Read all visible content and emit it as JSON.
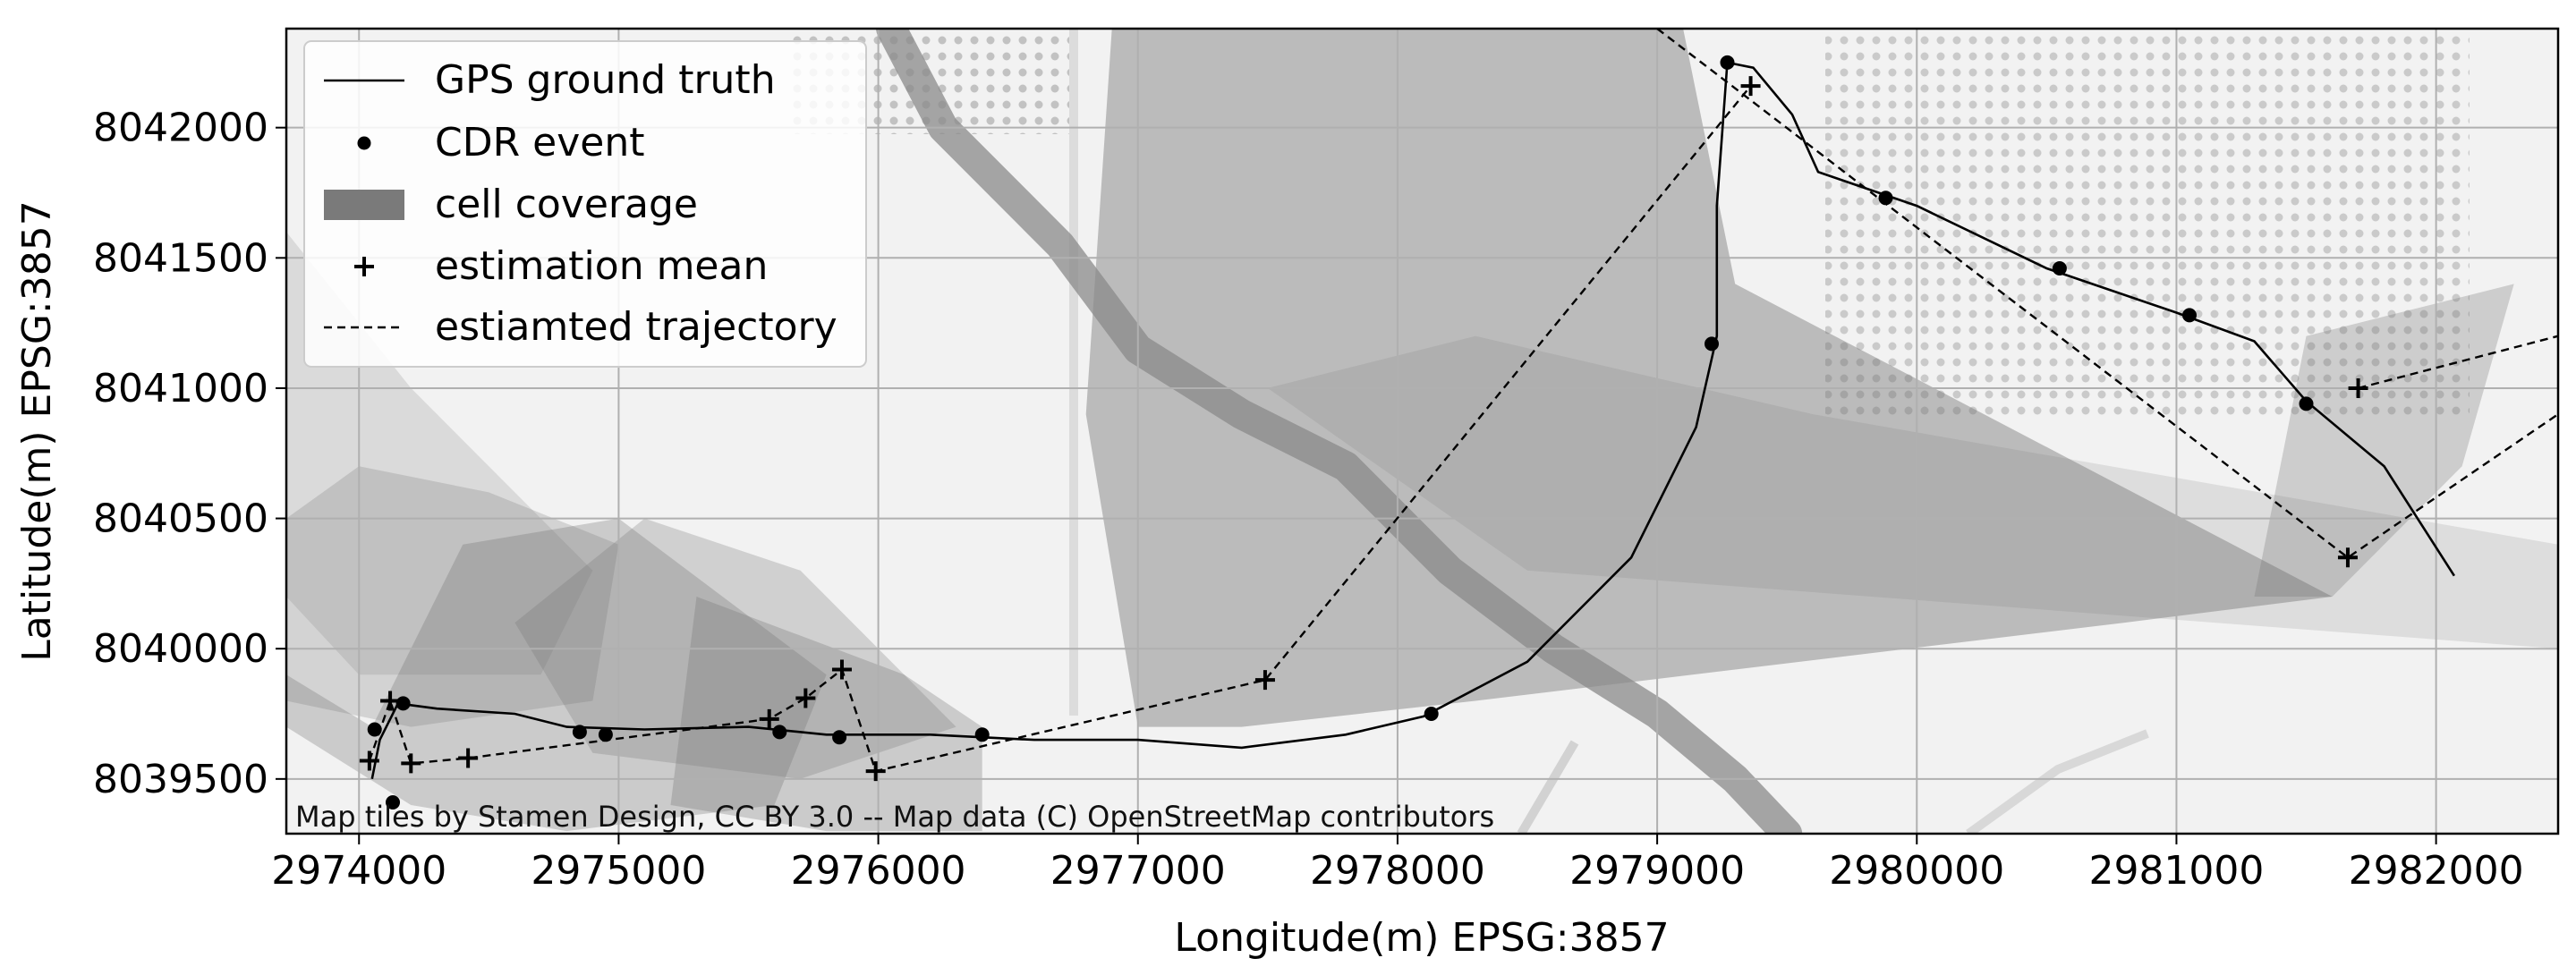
{
  "chart_data": {
    "type": "map",
    "xlabel": "Longitude(m) EPSG:3857",
    "ylabel": "Latitude(m) EPSG:3857",
    "xlim": [
      2973720,
      2982470
    ],
    "ylim": [
      8039290,
      8042380
    ],
    "xticks": [
      2974000,
      2975000,
      2976000,
      2977000,
      2978000,
      2979000,
      2980000,
      2981000,
      2982000
    ],
    "yticks": [
      8039500,
      8040000,
      8040500,
      8041000,
      8041500,
      8042000
    ],
    "xtick_labels": [
      "2974000",
      "2975000",
      "2976000",
      "2977000",
      "2978000",
      "2979000",
      "2980000",
      "2981000",
      "2982000"
    ],
    "ytick_labels": [
      "8039500",
      "8040000",
      "8040500",
      "8041000",
      "8041500",
      "8042000"
    ],
    "grid": true,
    "attribution": "Map tiles by Stamen Design, CC BY 3.0 -- Map data (C) OpenStreetMap contributors",
    "legend": {
      "position": "upper-left",
      "entries": [
        {
          "label": "GPS ground truth",
          "marker": "line"
        },
        {
          "label": "CDR event",
          "marker": "dot"
        },
        {
          "label": "cell coverage",
          "marker": "patch"
        },
        {
          "label": "estimation mean",
          "marker": "plus"
        },
        {
          "label": "estiamted trajectory",
          "marker": "dashed"
        }
      ]
    },
    "colors": {
      "line": "#000000",
      "coverage": "#6f6f6f",
      "grid": "#b0b0b0",
      "river": "#8a8a8a",
      "background": "#f2f2f2"
    },
    "gps_ground_truth": [
      [
        2974050,
        8039500
      ],
      [
        2974080,
        8039650
      ],
      [
        2974150,
        8039790
      ],
      [
        2974300,
        8039770
      ],
      [
        2974600,
        8039750
      ],
      [
        2974800,
        8039700
      ],
      [
        2975100,
        8039690
      ],
      [
        2975500,
        8039700
      ],
      [
        2975800,
        8039670
      ],
      [
        2976200,
        8039670
      ],
      [
        2976600,
        8039650
      ],
      [
        2977000,
        8039650
      ],
      [
        2977400,
        8039620
      ],
      [
        2977800,
        8039670
      ],
      [
        2978100,
        8039740
      ],
      [
        2978500,
        8039950
      ],
      [
        2978900,
        8040350
      ],
      [
        2979150,
        8040850
      ],
      [
        2979230,
        8041200
      ],
      [
        2979230,
        8041700
      ],
      [
        2979270,
        8042250
      ],
      [
        2979370,
        8042230
      ],
      [
        2979520,
        8042050
      ],
      [
        2979620,
        8041830
      ],
      [
        2980000,
        8041700
      ],
      [
        2980500,
        8041460
      ],
      [
        2981000,
        8041290
      ],
      [
        2981300,
        8041180
      ],
      [
        2981500,
        8040950
      ],
      [
        2981800,
        8040700
      ],
      [
        2982070,
        8040280
      ]
    ],
    "cdr_events": [
      [
        2974130,
        8039410
      ],
      [
        2974060,
        8039690
      ],
      [
        2974170,
        8039790
      ],
      [
        2974850,
        8039680
      ],
      [
        2974950,
        8039670
      ],
      [
        2975620,
        8039680
      ],
      [
        2975850,
        8039660
      ],
      [
        2976400,
        8039670
      ],
      [
        2978130,
        8039750
      ],
      [
        2979210,
        8041170
      ],
      [
        2979270,
        8042250
      ],
      [
        2979880,
        8041730
      ],
      [
        2980550,
        8041460
      ],
      [
        2981050,
        8041280
      ],
      [
        2981500,
        8040940
      ]
    ],
    "estimation_mean": [
      [
        2974040,
        8039570
      ],
      [
        2974120,
        8039800
      ],
      [
        2974200,
        8039560
      ],
      [
        2974420,
        8039580
      ],
      [
        2975580,
        8039730
      ],
      [
        2975720,
        8039810
      ],
      [
        2975860,
        8039920
      ],
      [
        2975990,
        8039530
      ],
      [
        2977490,
        8039880
      ],
      [
        2979360,
        8042160
      ],
      [
        2981660,
        8040350
      ],
      [
        2981700,
        8041000
      ]
    ],
    "estimated_trajectory": [
      [
        [
          2974040,
          8039570
        ],
        [
          2974120,
          8039800
        ],
        [
          2974200,
          8039560
        ],
        [
          2974420,
          8039580
        ],
        [
          2975580,
          8039730
        ],
        [
          2975720,
          8039810
        ],
        [
          2975860,
          8039920
        ],
        [
          2975990,
          8039530
        ],
        [
          2977490,
          8039880
        ],
        [
          2979360,
          8042160
        ]
      ],
      [
        [
          2979000,
          8042380
        ],
        [
          2981660,
          8040350
        ],
        [
          2982470,
          8040900
        ]
      ],
      [
        [
          2981700,
          8041000
        ],
        [
          2982470,
          8041200
        ]
      ]
    ],
    "river": [
      [
        2976050,
        8042380
      ],
      [
        2976250,
        8042000
      ],
      [
        2976700,
        8041550
      ],
      [
        2977000,
        8041150
      ],
      [
        2977400,
        8040900
      ],
      [
        2977800,
        8040700
      ],
      [
        2978200,
        8040300
      ],
      [
        2978600,
        8040000
      ],
      [
        2979000,
        8039750
      ],
      [
        2979300,
        8039500
      ],
      [
        2979500,
        8039290
      ]
    ],
    "coverage_polygons": [
      [
        [
          2976900,
          8042380
        ],
        [
          2979100,
          8042380
        ],
        [
          2979300,
          8041400
        ],
        [
          2981600,
          8040200
        ],
        [
          2980800,
          8040100
        ],
        [
          2978300,
          8039800
        ],
        [
          2977400,
          8039700
        ],
        [
          2977000,
          8039700
        ],
        [
          2976800,
          8040900
        ]
      ],
      [
        [
          2973720,
          8039900
        ],
        [
          2974050,
          8039700
        ],
        [
          2974400,
          8040400
        ],
        [
          2975000,
          8040500
        ],
        [
          2975800,
          8039900
        ],
        [
          2975600,
          8039400
        ],
        [
          2974800,
          8039300
        ],
        [
          2974200,
          8039400
        ],
        [
          2973720,
          8039700
        ]
      ],
      [
        [
          2974600,
          8040100
        ],
        [
          2975100,
          8040500
        ],
        [
          2975700,
          8040300
        ],
        [
          2976300,
          8039700
        ],
        [
          2975700,
          8039500
        ],
        [
          2974900,
          8039600
        ]
      ],
      [
        [
          2973720,
          8040500
        ],
        [
          2974000,
          8040700
        ],
        [
          2974500,
          8040600
        ],
        [
          2975000,
          8040400
        ],
        [
          2974900,
          8039800
        ],
        [
          2974200,
          8039700
        ],
        [
          2973720,
          8039800
        ]
      ],
      [
        [
          2981300,
          8040200
        ],
        [
          2981500,
          8041200
        ],
        [
          2982300,
          8041400
        ],
        [
          2982100,
          8040700
        ],
        [
          2981600,
          8040200
        ]
      ],
      [
        [
          2975300,
          8040200
        ],
        [
          2976100,
          8039900
        ],
        [
          2976400,
          8039700
        ],
        [
          2976400,
          8039300
        ],
        [
          2975800,
          8039300
        ],
        [
          2975200,
          8039400
        ]
      ],
      [
        [
          2973720,
          8041600
        ],
        [
          2974200,
          8041000
        ],
        [
          2974900,
          8040300
        ],
        [
          2974700,
          8039900
        ],
        [
          2974000,
          8039900
        ],
        [
          2973720,
          8040200
        ]
      ],
      [
        [
          2977500,
          8041000
        ],
        [
          2978500,
          8040300
        ],
        [
          2982470,
          8040000
        ],
        [
          2982470,
          8040400
        ],
        [
          2979600,
          8040900
        ],
        [
          2978300,
          8041200
        ]
      ]
    ]
  }
}
